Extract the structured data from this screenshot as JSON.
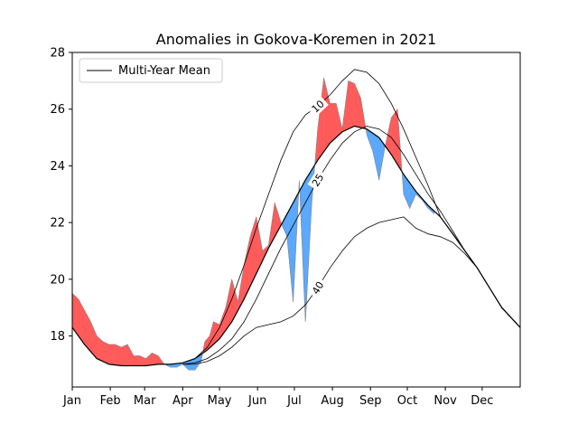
{
  "chart_data": {
    "type": "area",
    "title": "Anomalies in Gokova-Koremen in 2021",
    "xlabel": "",
    "ylabel": "",
    "xlim": [
      0,
      365
    ],
    "ylim": [
      16.2,
      28.0
    ],
    "x_ticks": [
      {
        "day": 0,
        "label": "Jan"
      },
      {
        "day": 31,
        "label": "Feb"
      },
      {
        "day": 59,
        "label": "Mar"
      },
      {
        "day": 90,
        "label": "Apr"
      },
      {
        "day": 120,
        "label": "May"
      },
      {
        "day": 151,
        "label": "Jun"
      },
      {
        "day": 181,
        "label": "Jul"
      },
      {
        "day": 212,
        "label": "Aug"
      },
      {
        "day": 243,
        "label": "Sep"
      },
      {
        "day": 273,
        "label": "Oct"
      },
      {
        "day": 304,
        "label": "Nov"
      },
      {
        "day": 334,
        "label": "Dec"
      }
    ],
    "y_ticks": [
      18,
      20,
      22,
      24,
      26,
      28
    ],
    "legend": {
      "position": "top-left",
      "entries": [
        "Multi-Year Mean"
      ]
    },
    "colors": {
      "above": "#ff5a5a",
      "below": "#5aa8ff",
      "line": "#000000"
    },
    "mean": {
      "name": "Multi-Year Mean",
      "x": [
        0,
        10,
        20,
        30,
        40,
        50,
        60,
        70,
        80,
        90,
        100,
        110,
        120,
        130,
        140,
        150,
        160,
        170,
        180,
        190,
        200,
        210,
        220,
        230,
        240,
        250,
        260,
        270,
        280,
        290,
        300,
        310,
        320,
        330,
        340,
        350,
        365
      ],
      "y": [
        18.3,
        17.7,
        17.2,
        17.0,
        16.95,
        16.95,
        16.95,
        17.0,
        17.0,
        17.05,
        17.2,
        17.5,
        17.9,
        18.5,
        19.3,
        20.2,
        21.1,
        21.9,
        22.7,
        23.5,
        24.2,
        24.8,
        25.2,
        25.4,
        25.3,
        25.0,
        24.4,
        23.7,
        23.1,
        22.6,
        22.2,
        21.6,
        21.0,
        20.4,
        19.7,
        19.0,
        18.3
      ]
    },
    "percentiles": [
      {
        "label": "10",
        "label_at": 200,
        "x": [
          90,
          100,
          110,
          120,
          130,
          140,
          150,
          160,
          170,
          180,
          190,
          200,
          210,
          220,
          230,
          240,
          250,
          260,
          270,
          280,
          290,
          300,
          310,
          320,
          330,
          340,
          350,
          365
        ],
        "y": [
          17.05,
          17.2,
          17.6,
          18.3,
          19.3,
          20.5,
          21.8,
          23.0,
          24.2,
          25.2,
          25.8,
          26.1,
          26.5,
          27.0,
          27.4,
          27.3,
          26.9,
          26.2,
          25.3,
          24.3,
          23.3,
          22.2,
          21.6,
          21.0,
          20.4,
          19.7,
          19.0,
          18.3
        ]
      },
      {
        "label": "25",
        "label_at": 200,
        "x": [
          90,
          100,
          110,
          120,
          130,
          140,
          150,
          160,
          170,
          180,
          190,
          200,
          210,
          220,
          230,
          240,
          250,
          260,
          270,
          280,
          290,
          300,
          310,
          320,
          330,
          340,
          350,
          365
        ],
        "y": [
          17.0,
          17.05,
          17.2,
          17.5,
          17.9,
          18.5,
          19.3,
          20.2,
          21.1,
          21.9,
          22.7,
          23.5,
          24.2,
          24.8,
          25.2,
          25.4,
          25.3,
          25.0,
          24.4,
          23.7,
          23.0,
          22.4,
          21.7,
          21.0,
          20.4,
          19.7,
          19.0,
          18.3
        ]
      },
      {
        "label": "40",
        "label_at": 200,
        "x": [
          90,
          100,
          110,
          120,
          130,
          140,
          150,
          160,
          170,
          180,
          190,
          200,
          210,
          220,
          230,
          240,
          250,
          260,
          270,
          280,
          290,
          300,
          310,
          320,
          330,
          340,
          350,
          365
        ],
        "y": [
          17.0,
          17.0,
          17.1,
          17.3,
          17.6,
          18.0,
          18.3,
          18.4,
          18.5,
          18.7,
          19.1,
          19.7,
          20.4,
          21.0,
          21.5,
          21.8,
          22.0,
          22.1,
          22.2,
          21.8,
          21.6,
          21.5,
          21.3,
          20.9,
          20.4,
          19.7,
          19.0,
          18.3
        ]
      }
    ],
    "observed": {
      "name": "2021",
      "x": [
        0,
        5,
        10,
        15,
        20,
        25,
        30,
        35,
        40,
        45,
        50,
        55,
        60,
        65,
        70,
        75,
        80,
        85,
        90,
        95,
        100,
        105,
        108,
        112,
        115,
        120,
        125,
        130,
        135,
        140,
        145,
        150,
        155,
        160,
        165,
        170,
        175,
        180,
        185,
        190,
        195,
        200,
        205,
        210,
        215,
        220,
        225,
        230,
        235,
        240,
        245,
        250,
        255,
        260,
        265,
        270,
        275,
        280,
        285,
        290,
        295
      ],
      "y": [
        19.5,
        19.3,
        18.9,
        18.5,
        18.0,
        17.8,
        17.7,
        17.7,
        17.6,
        17.7,
        17.3,
        17.3,
        17.2,
        17.4,
        17.3,
        17.0,
        16.9,
        16.9,
        17.0,
        16.8,
        16.8,
        17.1,
        17.8,
        18.0,
        18.5,
        18.4,
        19.0,
        20.0,
        19.2,
        20.5,
        21.5,
        22.2,
        21.0,
        21.2,
        22.7,
        22.0,
        21.5,
        19.2,
        23.5,
        18.5,
        22.6,
        25.3,
        27.1,
        26.2,
        26.2,
        25.3,
        27.0,
        26.9,
        26.4,
        25.1,
        24.5,
        23.5,
        24.7,
        25.7,
        26.0,
        23.0,
        22.5,
        23.0,
        22.8,
        22.5,
        22.3
      ]
    }
  }
}
